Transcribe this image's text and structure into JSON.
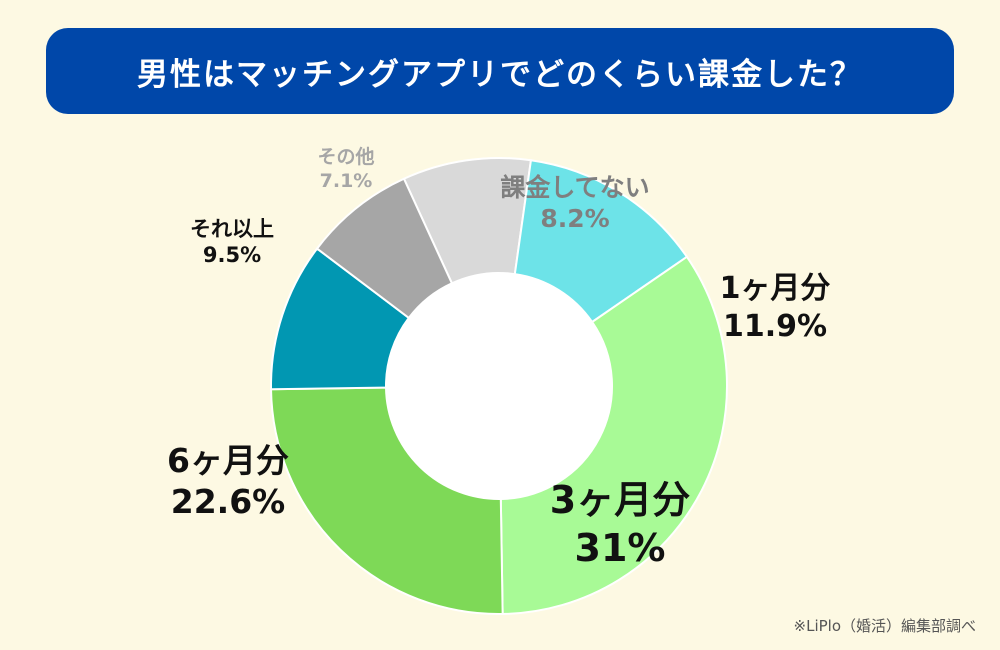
{
  "title": "男性はマッチングアプリでどのくらい課金した？",
  "source": "※LiPlo（婚活）編集部調べ",
  "chart_data": {
    "type": "pie",
    "donut": true,
    "title": "男性はマッチングアプリでどのくらい課金した？",
    "categories": [
      "課金してない",
      "1ヶ月分",
      "3ヶ月分",
      "6ヶ月分",
      "それ以上",
      "その他"
    ],
    "values": [
      8.2,
      11.9,
      31,
      22.6,
      9.5,
      7.1
    ],
    "value_labels": [
      "8.2%",
      "11.9%",
      "31%",
      "22.6%",
      "9.5%",
      "7.1%"
    ],
    "colors": [
      "#d9d9d9",
      "#6de3e8",
      "#a8fa96",
      "#7ed957",
      "#0197b2",
      "#a6a6a6"
    ],
    "label_colors": [
      "#7f7f7f",
      "#111111",
      "#111111",
      "#111111",
      "#111111",
      "#a6a6a6"
    ],
    "slice_names": [
      "slice-kakin-shitenai",
      "slice-1-month",
      "slice-3-months",
      "slice-6-months",
      "slice-sore-ijou",
      "slice-sonota"
    ],
    "legend": "none"
  }
}
